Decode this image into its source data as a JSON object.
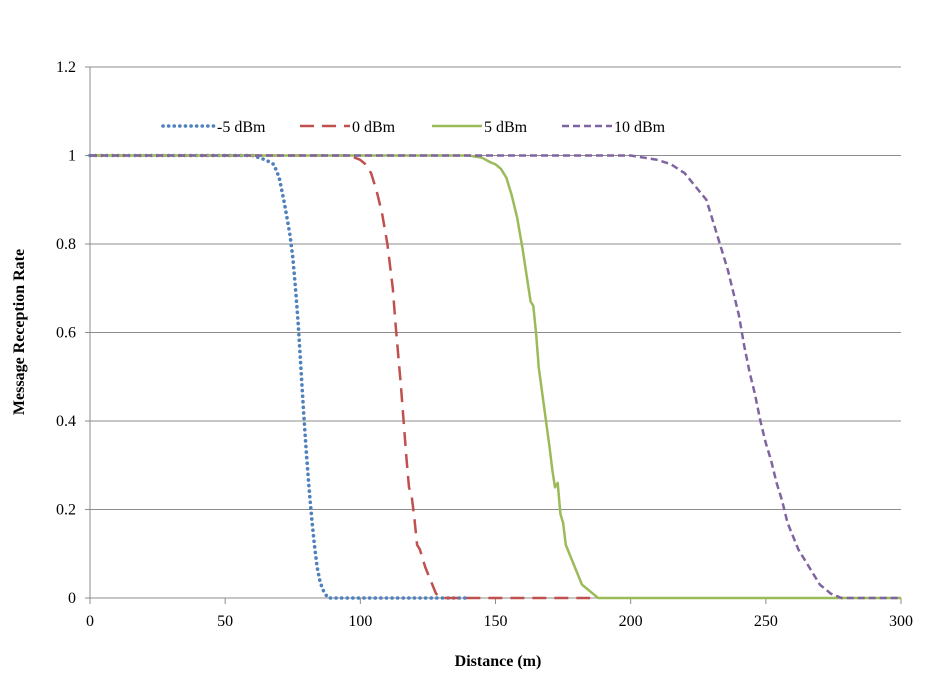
{
  "chart_data": {
    "type": "line",
    "title": "",
    "xlabel": "Distance (m)",
    "ylabel": "Message Reception Rate",
    "xlim": [
      0,
      300
    ],
    "ylim": [
      0,
      1.2
    ],
    "x_ticks": [
      "0",
      "50",
      "100",
      "150",
      "200",
      "250",
      "300"
    ],
    "y_ticks": [
      "0",
      "0.2",
      "0.4",
      "0.6",
      "0.8",
      "1",
      "1.2"
    ],
    "grid": "horizontal",
    "legend_position": "top-left",
    "series": [
      {
        "name": "-5 dBm",
        "color": "#4F81BD",
        "style": "dotted",
        "x": [
          0,
          60,
          65,
          68,
          70,
          72,
          74,
          75,
          76,
          77,
          78,
          79,
          80,
          81,
          82,
          83,
          84,
          85,
          86,
          87,
          88,
          90,
          100,
          120,
          140
        ],
        "y": [
          1,
          1,
          0.99,
          0.98,
          0.95,
          0.89,
          0.82,
          0.77,
          0.7,
          0.62,
          0.52,
          0.42,
          0.33,
          0.25,
          0.18,
          0.12,
          0.07,
          0.04,
          0.02,
          0.01,
          0.0,
          0.0,
          0.0,
          0.0,
          0.0
        ]
      },
      {
        "name": "0 dBm",
        "color": "#C0504D",
        "style": "dashed",
        "x": [
          0,
          95,
          98,
          100,
          102,
          104,
          106,
          108,
          110,
          112,
          113,
          114,
          115,
          116,
          117,
          118,
          119,
          120,
          121,
          122,
          124,
          126,
          128,
          130,
          140,
          160,
          185
        ],
        "y": [
          1,
          1,
          0.995,
          0.99,
          0.98,
          0.96,
          0.92,
          0.87,
          0.8,
          0.7,
          0.62,
          0.55,
          0.48,
          0.4,
          0.32,
          0.25,
          0.23,
          0.18,
          0.12,
          0.11,
          0.07,
          0.04,
          0.01,
          0.0,
          0.0,
          0.0,
          0.0
        ]
      },
      {
        "name": "5 dBm",
        "color": "#9BBB59",
        "style": "solid",
        "x": [
          0,
          140,
          145,
          148,
          150,
          152,
          154,
          156,
          158,
          160,
          161,
          162,
          163,
          164,
          165,
          166,
          168,
          170,
          171,
          172,
          173,
          174,
          175,
          176,
          178,
          180,
          182,
          184,
          186,
          188,
          190,
          200,
          250,
          300
        ],
        "y": [
          1,
          1,
          0.995,
          0.985,
          0.98,
          0.97,
          0.95,
          0.91,
          0.86,
          0.79,
          0.75,
          0.71,
          0.67,
          0.66,
          0.6,
          0.52,
          0.43,
          0.34,
          0.29,
          0.25,
          0.26,
          0.19,
          0.17,
          0.12,
          0.09,
          0.06,
          0.03,
          0.02,
          0.01,
          0.0,
          0.0,
          0.0,
          0.0,
          0.0
        ]
      },
      {
        "name": "10 dBm",
        "color": "#8064A2",
        "style": "dashed",
        "x": [
          0,
          190,
          200,
          205,
          210,
          215,
          220,
          224,
          228,
          230,
          232,
          234,
          236,
          238,
          240,
          242,
          244,
          246,
          248,
          250,
          252,
          254,
          256,
          258,
          260,
          262,
          264,
          266,
          268,
          270,
          272,
          274,
          276,
          278,
          280,
          290,
          300
        ],
        "y": [
          1,
          1,
          1,
          0.995,
          0.99,
          0.98,
          0.96,
          0.93,
          0.9,
          0.86,
          0.82,
          0.78,
          0.74,
          0.69,
          0.64,
          0.57,
          0.51,
          0.46,
          0.4,
          0.35,
          0.31,
          0.26,
          0.22,
          0.17,
          0.14,
          0.11,
          0.09,
          0.07,
          0.05,
          0.03,
          0.02,
          0.01,
          0.005,
          0.0,
          0.0,
          0.0,
          0.0
        ]
      }
    ]
  }
}
